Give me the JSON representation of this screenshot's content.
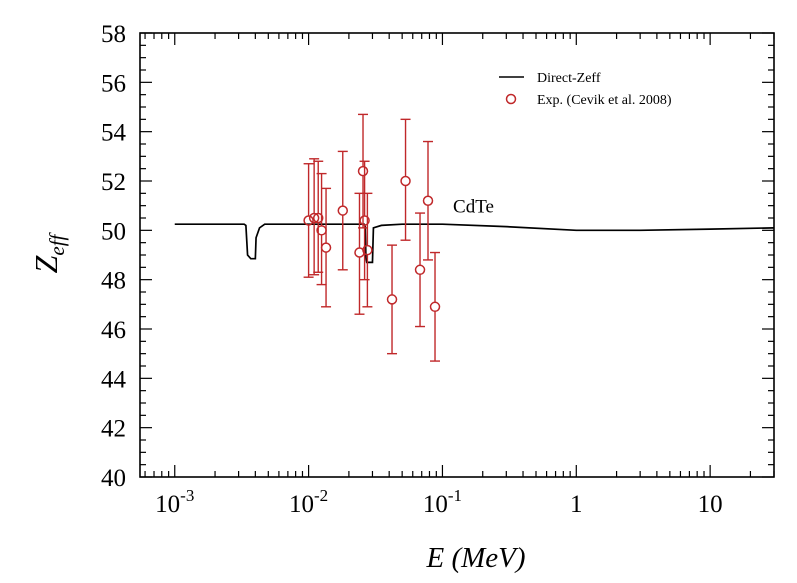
{
  "chart_data": {
    "type": "scatter",
    "title": "",
    "xlabel": "E (MeV)",
    "ylabel": "Z",
    "ylabel_sub": "eff",
    "xscale": "log",
    "xlim": [
      0.00055,
      30
    ],
    "ylim": [
      40,
      58
    ],
    "yticks": [
      40,
      42,
      44,
      46,
      48,
      50,
      52,
      54,
      56,
      58
    ],
    "xticks": [
      {
        "value": 0.001,
        "base": "10",
        "exp": "-3"
      },
      {
        "value": 0.01,
        "base": "10",
        "exp": "-2"
      },
      {
        "value": 0.1,
        "base": "10",
        "exp": "-1"
      },
      {
        "value": 1,
        "base": "1",
        "exp": ""
      },
      {
        "value": 10,
        "base": "10",
        "exp": ""
      }
    ],
    "annotation": {
      "text": "CdTe",
      "x": 0.12,
      "y": 51.0
    },
    "legend": {
      "position": "top-right"
    },
    "colors": {
      "line": "#000000",
      "points": "#c0282a",
      "axes": "#000000"
    },
    "series": [
      {
        "name": "Direct-Zeff",
        "kind": "line",
        "points": [
          [
            0.001,
            50.25
          ],
          [
            0.0033,
            50.25
          ],
          [
            0.0034,
            50.2
          ],
          [
            0.0035,
            49.0
          ],
          [
            0.0037,
            48.85
          ],
          [
            0.004,
            48.85
          ],
          [
            0.00405,
            49.7
          ],
          [
            0.0043,
            50.1
          ],
          [
            0.0047,
            50.25
          ],
          [
            0.026,
            50.25
          ],
          [
            0.0265,
            50.15
          ],
          [
            0.0268,
            48.9
          ],
          [
            0.0272,
            48.7
          ],
          [
            0.03,
            48.7
          ],
          [
            0.0305,
            50.1
          ],
          [
            0.035,
            50.2
          ],
          [
            0.05,
            50.25
          ],
          [
            0.1,
            50.25
          ],
          [
            0.3,
            50.15
          ],
          [
            1,
            50.0
          ],
          [
            3,
            50.0
          ],
          [
            10,
            50.05
          ],
          [
            30,
            50.1
          ]
        ]
      },
      {
        "name": "Exp. (Cevik et al. 2008)",
        "kind": "errorbar",
        "points": [
          {
            "x": 0.01,
            "y": 50.4,
            "lo": 48.1,
            "hi": 52.7
          },
          {
            "x": 0.011,
            "y": 50.5,
            "lo": 48.2,
            "hi": 52.9
          },
          {
            "x": 0.0118,
            "y": 50.5,
            "lo": 48.3,
            "hi": 52.8
          },
          {
            "x": 0.0125,
            "y": 50.0,
            "lo": 47.8,
            "hi": 52.3
          },
          {
            "x": 0.0135,
            "y": 49.3,
            "lo": 46.9,
            "hi": 51.7
          },
          {
            "x": 0.018,
            "y": 50.8,
            "lo": 48.4,
            "hi": 53.2
          },
          {
            "x": 0.024,
            "y": 49.1,
            "lo": 46.6,
            "hi": 51.5
          },
          {
            "x": 0.0255,
            "y": 52.4,
            "lo": 50.1,
            "hi": 54.7
          },
          {
            "x": 0.0262,
            "y": 50.4,
            "lo": 48.0,
            "hi": 52.8
          },
          {
            "x": 0.0275,
            "y": 49.2,
            "lo": 46.9,
            "hi": 51.5
          },
          {
            "x": 0.042,
            "y": 47.2,
            "lo": 45.0,
            "hi": 49.4
          },
          {
            "x": 0.053,
            "y": 52.0,
            "lo": 49.6,
            "hi": 54.5
          },
          {
            "x": 0.068,
            "y": 48.4,
            "lo": 46.1,
            "hi": 50.7
          },
          {
            "x": 0.078,
            "y": 51.2,
            "lo": 48.8,
            "hi": 53.6
          },
          {
            "x": 0.088,
            "y": 46.9,
            "lo": 44.7,
            "hi": 49.1
          }
        ]
      }
    ]
  }
}
